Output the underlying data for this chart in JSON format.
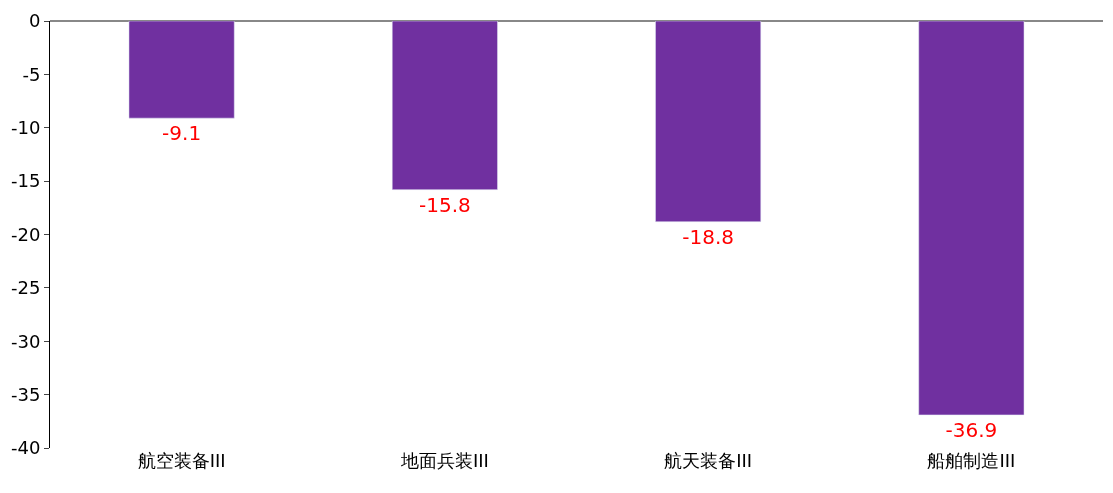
{
  "chart_data": {
    "type": "bar",
    "categories": [
      "航空装备III",
      "地面兵装III",
      "航天装备III",
      "船舶制造III"
    ],
    "values": [
      -9.1,
      -15.8,
      -18.8,
      -36.9
    ],
    "color": "#7030a0",
    "ylim": [
      -40,
      0
    ],
    "yticks": [
      0,
      -5,
      -10,
      -15,
      -20,
      -25,
      -30,
      -35,
      -40
    ],
    "data_labels": true
  }
}
